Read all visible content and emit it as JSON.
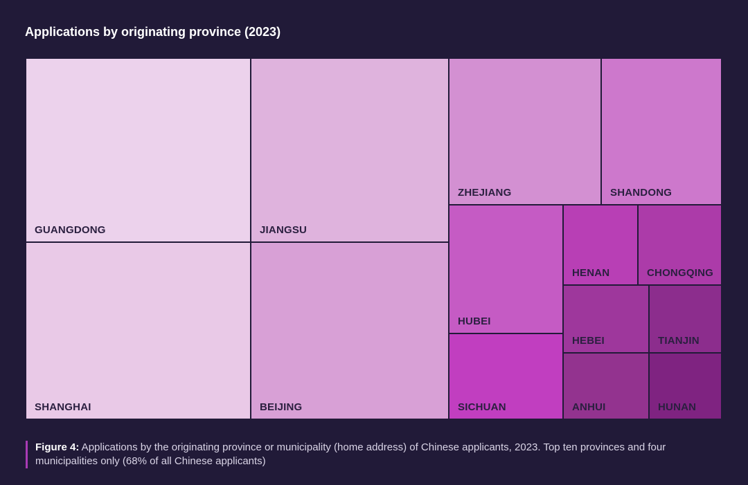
{
  "chart_data": {
    "type": "treemap",
    "title": "Applications by originating province (2023)",
    "tiles": [
      {
        "name": "GUANGDONG",
        "color": "#ecd2ec"
      },
      {
        "name": "SHANGHAI",
        "color": "#e9c9e7"
      },
      {
        "name": "JIANGSU",
        "color": "#dfb3dd"
      },
      {
        "name": "BEIJING",
        "color": "#d8a0d6"
      },
      {
        "name": "ZHEJIANG",
        "color": "#d390d2"
      },
      {
        "name": "SHANDONG",
        "color": "#cd78cc"
      },
      {
        "name": "HUBEI",
        "color": "#c55bc4"
      },
      {
        "name": "SICHUAN",
        "color": "#c13ec0"
      },
      {
        "name": "HENAN",
        "color": "#b83fb5"
      },
      {
        "name": "CHONGQING",
        "color": "#ac3ba9"
      },
      {
        "name": "HEBEI",
        "color": "#9e379c"
      },
      {
        "name": "TIANJIN",
        "color": "#8c2d8d"
      },
      {
        "name": "ANHUI",
        "color": "#93338f"
      },
      {
        "name": "HUNAN",
        "color": "#7f2381"
      }
    ]
  },
  "caption": {
    "label": "Figure 4:",
    "text": " Applications by the originating province or municipality (home address) of Chinese applicants, 2023. Top ten provinces and four municipalities only (68% of all Chinese applicants)"
  }
}
